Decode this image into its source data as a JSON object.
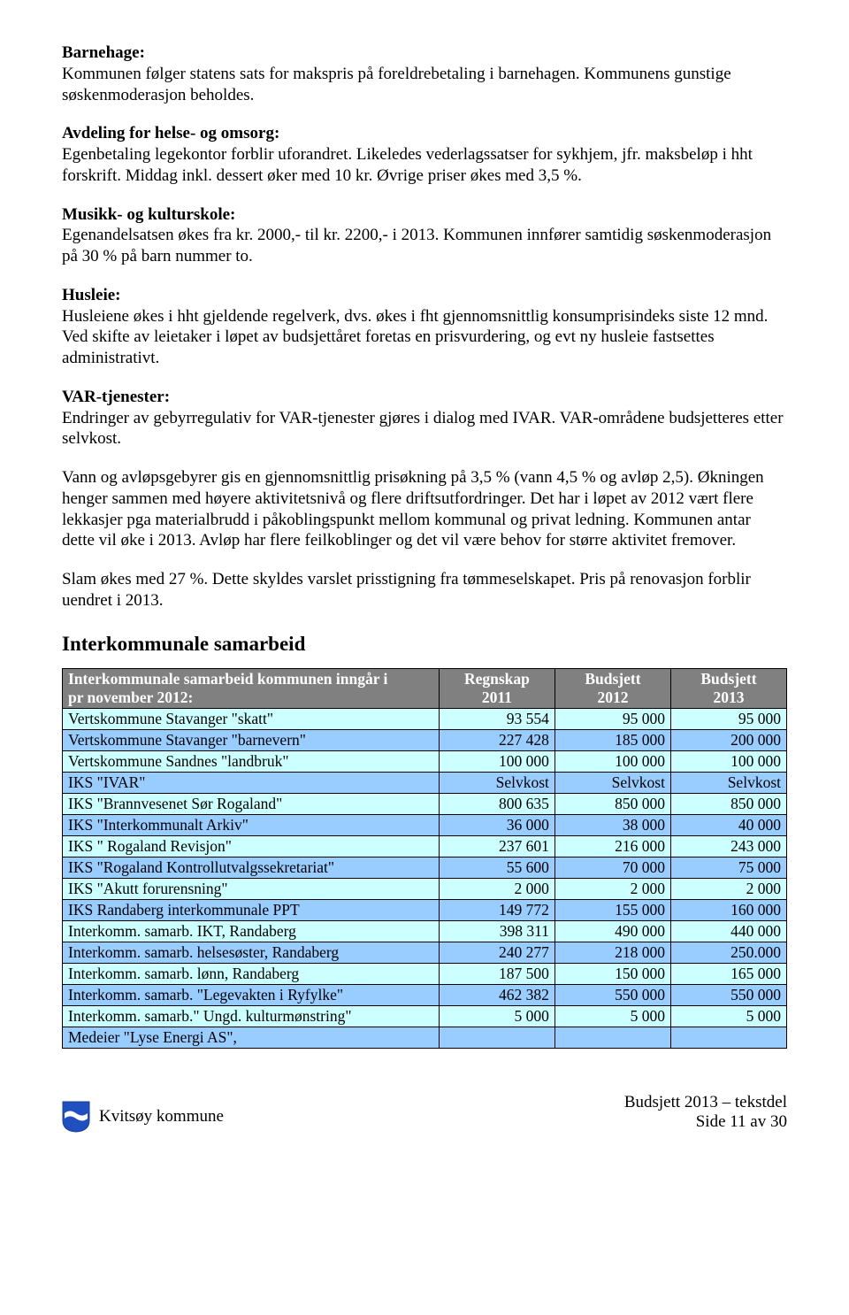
{
  "sections": {
    "barnehage": {
      "heading": "Barnehage:",
      "text": "Kommunen følger statens sats for makspris på foreldrebetaling i barnehagen. Kommunens gunstige søskenmoderasjon beholdes."
    },
    "helse": {
      "heading": "Avdeling for helse- og omsorg:",
      "text": "Egenbetaling legekontor forblir uforandret. Likeledes vederlagssatser for sykhjem, jfr. maksbeløp i hht forskrift. Middag inkl. dessert øker med 10 kr. Øvrige priser økes med 3,5 %."
    },
    "musikk": {
      "heading": "Musikk- og kulturskole:",
      "text": "Egenandelsatsen økes fra kr. 2000,- til kr. 2200,- i 2013. Kommunen innfører samtidig søskenmoderasjon på 30 % på barn nummer to."
    },
    "husleie": {
      "heading": "Husleie:",
      "text": "Husleiene økes i hht gjeldende regelverk, dvs. økes i fht gjennomsnittlig konsumprisindeks siste 12 mnd. Ved skifte av leietaker i løpet av budsjettåret foretas en prisvurdering, og evt ny husleie fastsettes administrativt."
    },
    "var": {
      "heading": "VAR-tjenester:",
      "text1": "Endringer av gebyrregulativ for VAR-tjenester gjøres i dialog med IVAR. VAR-områdene budsjetteres etter selvkost.",
      "text2": "Vann og avløpsgebyrer gis en gjennomsnittlig prisøkning på 3,5 % (vann 4,5 % og avløp 2,5). Økningen henger sammen med høyere aktivitetsnivå og flere driftsutfordringer. Det har i løpet av 2012 vært flere lekkasjer pga materialbrudd i påkoblingspunkt mellom kommunal og privat ledning. Kommunen antar dette vil øke i 2013. Avløp har flere feilkoblinger og det vil være behov for større aktivitet fremover.",
      "text3": "Slam økes med 27 %. Dette skyldes varslet prisstigning fra tømmeselskapet. Pris på renovasjon forblir uendret i 2013."
    }
  },
  "inter_heading": "Interkommunale samarbeid",
  "table": {
    "header": {
      "col1_line1": "Interkommunale samarbeid kommunen inngår i",
      "col1_line2": "pr november 2012:",
      "col2_line1": "Regnskap",
      "col2_line2": "2011",
      "col3_line1": "Budsjett",
      "col3_line2": "2012",
      "col4_line1": "Budsjett",
      "col4_line2": "2013"
    },
    "rows": [
      {
        "label": "Vertskommune Stavanger \"skatt\"",
        "c2": "93 554",
        "c3": "95 000",
        "c4": "95 000"
      },
      {
        "label": "Vertskommune Stavanger \"barnevern\"",
        "c2": "227 428",
        "c3": "185 000",
        "c4": "200 000"
      },
      {
        "label": "Vertskommune Sandnes \"landbruk\"",
        "c2": "100 000",
        "c3": "100 000",
        "c4": "100 000"
      },
      {
        "label": "IKS \"IVAR\"",
        "c2": "Selvkost",
        "c3": "Selvkost",
        "c4": "Selvkost"
      },
      {
        "label": "IKS \"Brannvesenet Sør Rogaland\"",
        "c2": "800 635",
        "c3": "850 000",
        "c4": "850 000"
      },
      {
        "label": "IKS \"Interkommunalt Arkiv\"",
        "c2": "36 000",
        "c3": "38 000",
        "c4": "40 000"
      },
      {
        "label": "IKS \" Rogaland Revisjon\"",
        "c2": "237 601",
        "c3": "216 000",
        "c4": "243 000"
      },
      {
        "label": "IKS \"Rogaland Kontrollutvalgssekretariat\"",
        "c2": "55 600",
        "c3": "70 000",
        "c4": "75 000"
      },
      {
        "label": "IKS \"Akutt forurensning\"",
        "c2": "2 000",
        "c3": "2 000",
        "c4": "2 000"
      },
      {
        "label": "IKS Randaberg interkommunale PPT",
        "c2": "149 772",
        "c3": "155 000",
        "c4": "160 000"
      },
      {
        "label": "Interkomm. samarb. IKT, Randaberg",
        "c2": "398 311",
        "c3": "490 000",
        "c4": "440 000"
      },
      {
        "label": "Interkomm. samarb. helsesøster, Randaberg",
        "c2": "240 277",
        "c3": "218 000",
        "c4": "250.000"
      },
      {
        "label": "Interkomm. samarb. lønn, Randaberg",
        "c2": "187 500",
        "c3": "150 000",
        "c4": "165 000"
      },
      {
        "label": "Interkomm. samarb. \"Legevakten i Ryfylke\"",
        "c2": "462 382",
        "c3": "550 000",
        "c4": "550 000"
      },
      {
        "label": "Interkomm. samarb.\" Ungd. kulturmønstring\"",
        "c2": "5 000",
        "c3": "5 000",
        "c4": "5 000"
      },
      {
        "label": "Medeier \"Lyse Energi AS\",",
        "c2": "",
        "c3": "",
        "c4": ""
      }
    ],
    "row_colors": {
      "odd": "#ccffff",
      "even": "#99ccff"
    },
    "header_bg": "#808080",
    "header_fg": "#ffffff",
    "border": "#000000"
  },
  "footer": {
    "left": "Kvitsøy kommune",
    "right_line1": "Budsjett 2013 – tekstdel",
    "right_line2": "Side 11 av 30",
    "crest_colors": {
      "shield": "#2050c0",
      "wave": "#ffffff"
    }
  }
}
